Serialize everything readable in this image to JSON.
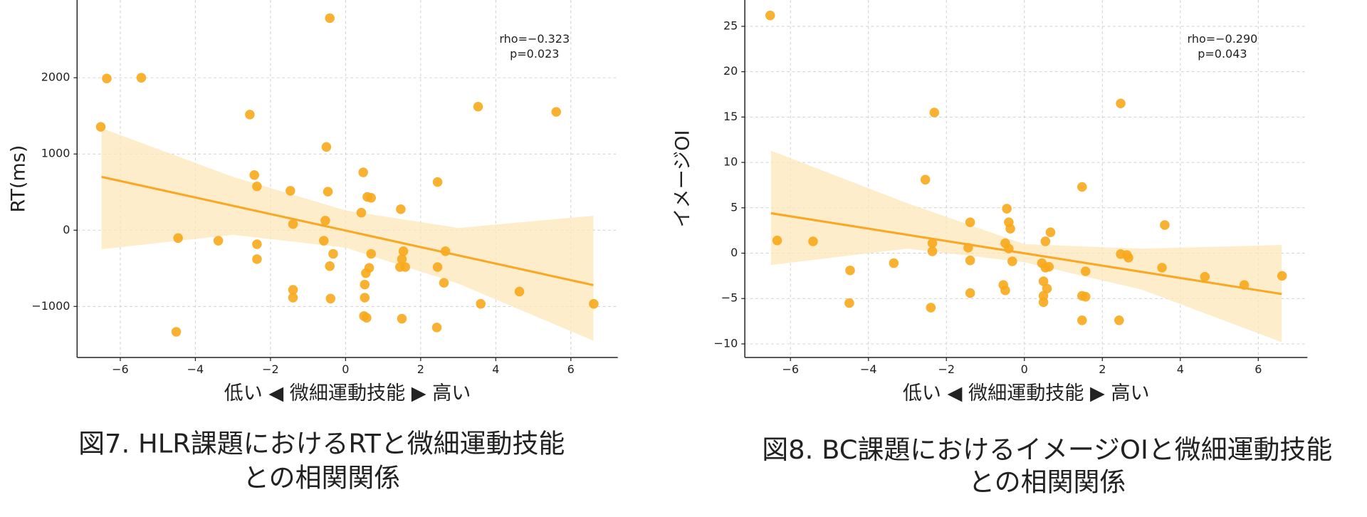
{
  "chart_data": [
    {
      "type": "scatter",
      "ylabel": "RT(ms)",
      "xlabel": "低い ◀ 微細運動技能 ▶ 高い",
      "caption": [
        "図7. HLR課題におけるRTと微細運動技能",
        "との相関関係"
      ],
      "annotation": [
        "rho=−0.323",
        "p=0.023"
      ],
      "color": "#f7a81b",
      "line_color": "#f9a825",
      "band_color": "#fde7b8",
      "grid": true,
      "xlim": [
        -7.15,
        7.25
      ],
      "ylim": [
        -1670,
        3020
      ],
      "xticks": [
        {
          "value": -6,
          "label": "−6"
        },
        {
          "value": -4,
          "label": "−4"
        },
        {
          "value": -2,
          "label": "−2"
        },
        0,
        2,
        4,
        6
      ],
      "yticks": [
        {
          "value": -1000,
          "label": "−1000"
        },
        0,
        1000,
        2000
      ],
      "x": [
        -6.52,
        -6.36,
        -5.44,
        -4.46,
        -4.51,
        -3.39,
        -2.55,
        -2.43,
        -2.36,
        -2.36,
        -2.36,
        -1.47,
        -1.4,
        -1.4,
        -1.4,
        -0.42,
        -0.51,
        -0.47,
        -0.54,
        -0.58,
        -0.33,
        -0.42,
        -0.4,
        0.47,
        0.42,
        0.58,
        0.68,
        0.68,
        0.63,
        0.54,
        0.51,
        0.51,
        0.49,
        0.56,
        1.47,
        1.54,
        1.5,
        1.45,
        1.59,
        1.5,
        2.45,
        2.45,
        2.66,
        2.62,
        2.43,
        3.53,
        3.6,
        4.63,
        5.61,
        6.61
      ],
      "values": [
        1356,
        1990,
        2000,
        -103,
        -1333,
        -138,
        1517,
        724,
        575,
        -184,
        -379,
        517,
        80,
        -782,
        -885,
        2782,
        1092,
        506,
        126,
        -138,
        -310,
        -471,
        -897,
        759,
        230,
        437,
        425,
        -310,
        -494,
        -563,
        -713,
        -885,
        -1126,
        -1149,
        276,
        -276,
        -379,
        -483,
        -483,
        -1161,
        632,
        -483,
        -276,
        -690,
        -1276,
        1621,
        -966,
        -805,
        1552,
        -966
      ],
      "fit": {
        "x": [
          -6.5,
          6.6
        ],
        "y": [
          700,
          -720
        ]
      },
      "band": {
        "x": [
          -6.5,
          -3,
          0,
          3,
          6.6
        ],
        "upper": [
          1340,
          700,
          260,
          30,
          190
        ],
        "lower": [
          -250,
          -60,
          -230,
          -700,
          -1450
        ]
      }
    },
    {
      "type": "scatter",
      "ylabel": "イメージOI",
      "xlabel": "低い ◀ 微細運動技能 ▶ 高い",
      "caption": [
        "図8. BC課題におけるイメージOIと微細運動技能",
        "との相関関係"
      ],
      "annotation": [
        "rho=−0.290",
        "p=0.043"
      ],
      "color": "#f7a81b",
      "line_color": "#f9a825",
      "band_color": "#fde7b8",
      "grid": true,
      "xlim": [
        -7.17,
        7.26
      ],
      "ylim": [
        -11.5,
        27.9
      ],
      "xticks": [
        {
          "value": -6,
          "label": "−6"
        },
        {
          "value": -4,
          "label": "−4"
        },
        {
          "value": -2,
          "label": "−2"
        },
        0,
        2,
        4,
        6
      ],
      "yticks": [
        {
          "value": -10,
          "label": "−10"
        },
        {
          "value": -5,
          "label": "−5"
        },
        0,
        5,
        10,
        15,
        20,
        25
      ],
      "x": [
        -6.52,
        -6.34,
        -5.42,
        -4.47,
        -4.49,
        -3.35,
        -2.54,
        -2.31,
        -2.36,
        -2.36,
        -2.4,
        -1.39,
        -1.44,
        -1.39,
        -1.39,
        -0.45,
        -0.4,
        -0.36,
        -0.49,
        -0.4,
        -0.31,
        -0.54,
        -0.49,
        0.54,
        0.67,
        0.45,
        0.54,
        0.63,
        0.49,
        0.58,
        0.49,
        0.49,
        1.48,
        1.57,
        1.48,
        1.57,
        1.48,
        2.47,
        2.47,
        2.63,
        2.67,
        2.43,
        3.6,
        3.53,
        4.63,
        5.64,
        6.61
      ],
      "values": [
        26.2,
        1.4,
        1.3,
        -1.9,
        -5.5,
        -1.1,
        8.1,
        15.5,
        1.1,
        0.2,
        -6.0,
        3.4,
        0.6,
        -0.8,
        -4.4,
        4.9,
        3.4,
        2.7,
        1.1,
        0.5,
        -0.9,
        -3.5,
        -4.1,
        1.3,
        2.3,
        -1.1,
        -1.6,
        -1.5,
        -3.1,
        -3.9,
        -4.7,
        -5.4,
        7.3,
        -2.0,
        -4.7,
        -4.8,
        -7.4,
        16.5,
        -0.1,
        -0.2,
        -0.5,
        -7.4,
        3.1,
        -1.6,
        -2.6,
        -3.5,
        -2.5
      ],
      "fit": {
        "x": [
          -6.5,
          6.6
        ],
        "y": [
          4.4,
          -4.5
        ]
      },
      "band": {
        "x": [
          -6.5,
          -3,
          0,
          3,
          6.6
        ],
        "upper": [
          11.3,
          5.5,
          1.0,
          0.5,
          0.9
        ],
        "lower": [
          -1.3,
          0.5,
          -1.0,
          -4.0,
          -9.8
        ]
      }
    }
  ]
}
